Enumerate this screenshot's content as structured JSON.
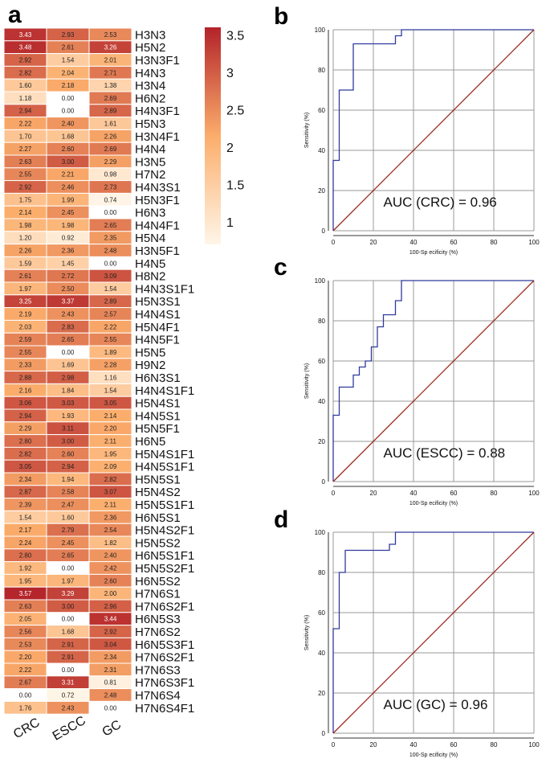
{
  "panel_labels": {
    "a": "a",
    "b": "b",
    "c": "c",
    "d": "d"
  },
  "colors": {
    "low": "#fff6e8",
    "mid": "#fbad6b",
    "high": "#b3232a",
    "roc_line": "#2f3a9c",
    "diagonal": "#9b2a1e",
    "grid": "#9a9a9a"
  },
  "chart_data": [
    {
      "type": "heatmap",
      "title": "",
      "columns": [
        "CRC",
        "ESCC",
        "GC"
      ],
      "rows": [
        "H3N3",
        "H5N2",
        "H3N3F1",
        "H4N3",
        "H3N4",
        "H6N2",
        "H4N3F1",
        "H5N3",
        "H3N4F1",
        "H4N4",
        "H3N5",
        "H7N2",
        "H4N3S1",
        "H5N3F1",
        "H6N3",
        "H4N4F1",
        "H5N4",
        "H3N5F1",
        "H4N5",
        "H8N2",
        "H4N3S1F1",
        "H5N3S1",
        "H4N4S1",
        "H5N4F1",
        "H4N5F1",
        "H5N5",
        "H9N2",
        "H6N3S1",
        "H4N4S1F1",
        "H5N4S1",
        "H4N5S1",
        "H5N5F1",
        "H6N5",
        "H5N4S1F1",
        "H4N5S1F1",
        "H5N5S1",
        "H5N4S2",
        "H5N5S1F1",
        "H6N5S1",
        "H5N4S2F1",
        "H5N5S2",
        "H6N5S1F1",
        "H5N5S2F1",
        "H6N5S2",
        "H7N6S1",
        "H7N6S2F1",
        "H6N5S3",
        "H7N6S2",
        "H6N5S3F1",
        "H7N6S2F1",
        "H7N6S3",
        "H7N6S3F1",
        "H7N6S4",
        "H7N6S4F1"
      ],
      "values": [
        [
          "3.43",
          "2.93",
          "2.53"
        ],
        [
          "3.48",
          "2.61",
          "3.26"
        ],
        [
          "2.92",
          "1.54",
          "2.01"
        ],
        [
          "2.82",
          "2.04",
          "2.71"
        ],
        [
          "1.60",
          "2.18",
          "1.38"
        ],
        [
          "1.18",
          "0.00",
          "2.69"
        ],
        [
          "2.94",
          "0.00",
          "2.89"
        ],
        [
          "2.22",
          "2.40",
          "1.61"
        ],
        [
          "1.70",
          "1.68",
          "2.26"
        ],
        [
          "2.27",
          "2.60",
          "2.69"
        ],
        [
          "2.63",
          "3.00",
          "2.29"
        ],
        [
          "2.55",
          "2.21",
          "0.98"
        ],
        [
          "2.92",
          "2.46",
          "2.73"
        ],
        [
          "1.75",
          "1.99",
          "0.74"
        ],
        [
          "2.14",
          "2.45",
          "0.00"
        ],
        [
          "1.98",
          "1.98",
          "2.65"
        ],
        [
          "1.20",
          "0.92",
          "2.35"
        ],
        [
          "2.26",
          "2.36",
          "2.48"
        ],
        [
          "1.59",
          "1.45",
          "0.00"
        ],
        [
          "2.61",
          "2.72",
          "3.09"
        ],
        [
          "1.97",
          "2.50",
          "1.54"
        ],
        [
          "3.25",
          "3.37",
          "2.89"
        ],
        [
          "2.19",
          "2.43",
          "2.57"
        ],
        [
          "2.03",
          "2.83",
          "2.22"
        ],
        [
          "2.59",
          "2.65",
          "2.55"
        ],
        [
          "2.55",
          "0.00",
          "1.89"
        ],
        [
          "2.33",
          "1.69",
          "2.28"
        ],
        [
          "2.88",
          "2.98",
          "1.16"
        ],
        [
          "2.16",
          "1.84",
          "1.54"
        ],
        [
          "3.06",
          "3.03",
          "3.05"
        ],
        [
          "2.94",
          "1.93",
          "2.14"
        ],
        [
          "2.29",
          "3.11",
          "2.20"
        ],
        [
          "2.80",
          "3.00",
          "2.11"
        ],
        [
          "2.82",
          "2.60",
          "1.95"
        ],
        [
          "3.05",
          "2.94",
          "2.09"
        ],
        [
          "2.34",
          "1.94",
          "2.82"
        ],
        [
          "2.87",
          "2.58",
          "3.07"
        ],
        [
          "2.39",
          "2.47",
          "2.11"
        ],
        [
          "1.54",
          "1.60",
          "2.36"
        ],
        [
          "2.17",
          "2.79",
          "2.54"
        ],
        [
          "2.24",
          "2.45",
          "1.82"
        ],
        [
          "2.80",
          "2.65",
          "2.40"
        ],
        [
          "1.92",
          "0.00",
          "2.42"
        ],
        [
          "1.95",
          "1.97",
          "2.60"
        ],
        [
          "3.57",
          "3.29",
          "2.00"
        ],
        [
          "2.63",
          "3.00",
          "2.96"
        ],
        [
          "2.05",
          "0.00",
          "3.44"
        ],
        [
          "2.56",
          "1.68",
          "2.92"
        ],
        [
          "2.53",
          "2.91",
          "3.04"
        ],
        [
          "2.20",
          "2.91",
          "2.34"
        ],
        [
          "2.22",
          "0.00",
          "2.31"
        ],
        [
          "2.67",
          "3.31",
          "0.81"
        ],
        [
          "0.00",
          "0.72",
          "2.48"
        ],
        [
          "1.76",
          "2.43",
          "0.00"
        ]
      ],
      "colorbar": {
        "min": 0.7,
        "max": 3.6,
        "ticks": [
          "3.5",
          "3",
          "2.5",
          "2",
          "1.5",
          "1"
        ],
        "tick_values": [
          3.5,
          3,
          2.5,
          2,
          1.5,
          1
        ]
      }
    },
    {
      "type": "line",
      "panel": "b",
      "xlabel": "100-Sp ecificity (%)",
      "ylabel": "Sensitivity (%)",
      "xlim": [
        0,
        100
      ],
      "ylim": [
        0,
        100
      ],
      "xticks": [
        "0",
        "20",
        "40",
        "60",
        "80",
        "100"
      ],
      "yticks": [
        "0",
        "20",
        "40",
        "60",
        "80",
        "100"
      ],
      "grid": true,
      "annotation": "AUC (CRC) = 0.96",
      "series": [
        {
          "name": "ROC",
          "x": [
            0,
            0,
            3,
            3,
            4,
            4,
            10,
            10,
            11,
            11,
            31,
            31,
            34,
            34,
            100
          ],
          "y": [
            0,
            35,
            35,
            70,
            70,
            70,
            70,
            93,
            93,
            93,
            93,
            97,
            97,
            100,
            100
          ]
        },
        {
          "name": "Reference",
          "x": [
            0,
            100
          ],
          "y": [
            0,
            100
          ]
        }
      ]
    },
    {
      "type": "line",
      "panel": "c",
      "xlabel": "100-Sp ecificity (%)",
      "ylabel": "Sensitivity (%)",
      "xlim": [
        0,
        100
      ],
      "ylim": [
        0,
        100
      ],
      "xticks": [
        "0",
        "20",
        "40",
        "60",
        "80",
        "100"
      ],
      "yticks": [
        "0",
        "20",
        "40",
        "60",
        "80",
        "100"
      ],
      "grid": true,
      "annotation": "AUC (ESCC) = 0.88",
      "series": [
        {
          "name": "ROC",
          "x": [
            0,
            0,
            3,
            3,
            10,
            10,
            13,
            13,
            16,
            16,
            19,
            19,
            22,
            22,
            25,
            25,
            31,
            31,
            34,
            34,
            100
          ],
          "y": [
            0,
            33,
            33,
            47,
            47,
            53,
            53,
            57,
            57,
            60,
            60,
            67,
            67,
            77,
            77,
            83,
            83,
            90,
            90,
            100,
            100
          ]
        },
        {
          "name": "Reference",
          "x": [
            0,
            100
          ],
          "y": [
            0,
            100
          ]
        }
      ]
    },
    {
      "type": "line",
      "panel": "d",
      "xlabel": "100-Sp ecificity (%)",
      "ylabel": "Sensitivity (%)",
      "xlim": [
        0,
        100
      ],
      "ylim": [
        0,
        100
      ],
      "xticks": [
        "0",
        "20",
        "40",
        "60",
        "80",
        "100"
      ],
      "yticks": [
        "0",
        "20",
        "40",
        "60",
        "80",
        "100"
      ],
      "grid": true,
      "annotation": "AUC (GC) = 0.96",
      "series": [
        {
          "name": "ROC",
          "x": [
            0,
            0,
            3,
            3,
            6,
            6,
            28,
            28,
            31,
            31,
            100
          ],
          "y": [
            0,
            52,
            52,
            80,
            80,
            91,
            91,
            94,
            94,
            100,
            100
          ]
        },
        {
          "name": "Reference",
          "x": [
            0,
            100
          ],
          "y": [
            0,
            100
          ]
        }
      ]
    }
  ]
}
